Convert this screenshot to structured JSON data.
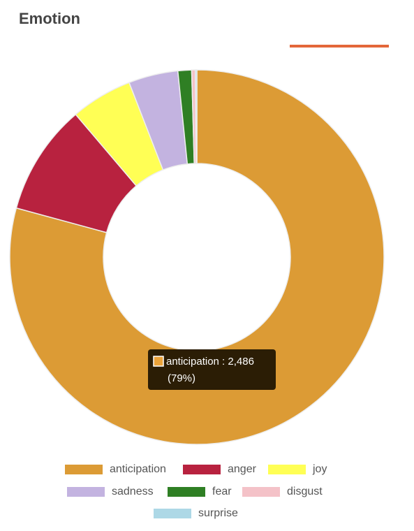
{
  "chart_data": {
    "type": "donut",
    "title": "Emotion",
    "categories": [
      "anticipation",
      "anger",
      "joy",
      "sadness",
      "fear",
      "disgust",
      "surprise"
    ],
    "values": [
      2486,
      300,
      167,
      134,
      37,
      10,
      4
    ],
    "colors": [
      "#dc9b35",
      "#b8223f",
      "#ffff55",
      "#c3b3e0",
      "#2f7f24",
      "#f4c2c8",
      "#add8e6"
    ],
    "tooltip": {
      "text": "anticipation : 2,486",
      "percent": "(79%)"
    }
  }
}
